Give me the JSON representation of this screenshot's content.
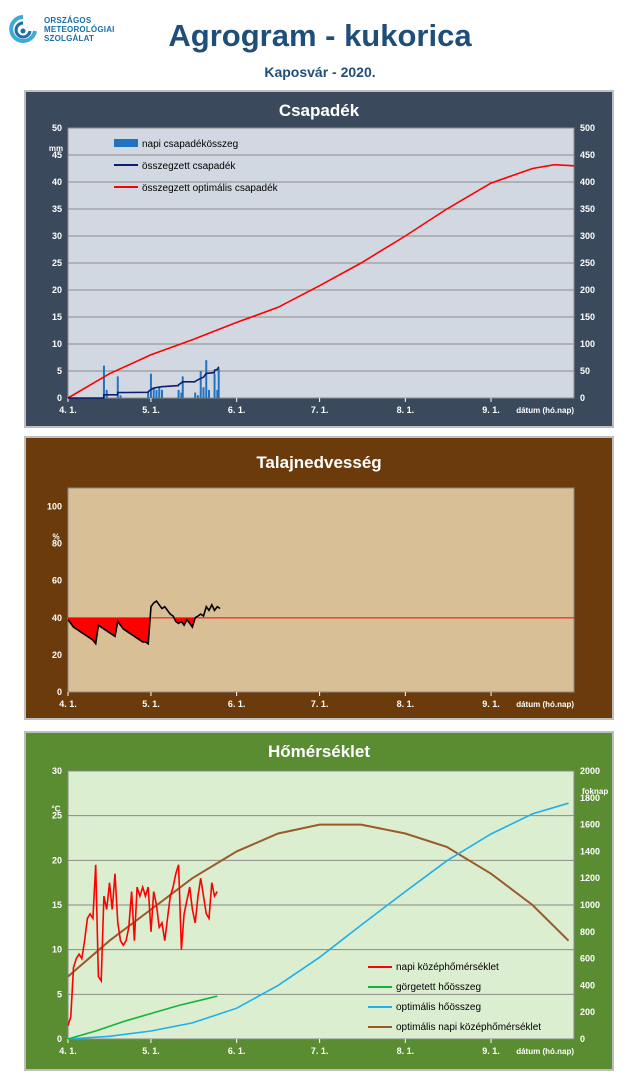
{
  "header": {
    "logo_lines": [
      "ORSZÁGOS",
      "METEOROLÓGIAI",
      "SZOLGÁLAT"
    ],
    "title": "Agrogram - kukorica",
    "subtitle": "Kaposvár  - 2020."
  },
  "colors": {
    "precip_panel_bg": "#3a4a5c",
    "precip_plot_bg": "#d2d8e2",
    "soil_panel_bg": "#6b3b0c",
    "soil_plot_bg": "#d9bf96",
    "temp_panel_bg": "#5a8c32",
    "temp_plot_bg": "#dbeed0"
  },
  "chart_data": [
    {
      "id": "precip",
      "type": "bar+line",
      "title": "Csapadék",
      "ylabel": "mm",
      "y2label": "",
      "xlabel": "dátum (hó.nap)",
      "x_ticks": [
        "4. 1.",
        "5. 1.",
        "6. 1.",
        "7. 1.",
        "8. 1.",
        "9. 1."
      ],
      "x_tick_days": [
        0,
        30,
        61,
        91,
        122,
        153
      ],
      "xlim": [
        0,
        183
      ],
      "ylim": [
        0,
        50
      ],
      "y_ticks": [
        0,
        5,
        10,
        15,
        20,
        25,
        30,
        35,
        40,
        45,
        50
      ],
      "y2lim": [
        0,
        500
      ],
      "y2_ticks": [
        0,
        50,
        100,
        150,
        200,
        250,
        300,
        350,
        400,
        450,
        500
      ],
      "legend": [
        {
          "label": "napi csapadékösszeg",
          "color": "#1f73c0",
          "kind": "bar"
        },
        {
          "label": "összegzett csapadék",
          "color": "#0a1f6e",
          "kind": "line"
        },
        {
          "label": "összegzett optimális  csapadék",
          "color": "#ff0000",
          "kind": "line"
        }
      ],
      "daily_bars": [
        [
          13,
          6
        ],
        [
          14,
          1.5
        ],
        [
          18,
          4
        ],
        [
          19,
          0.5
        ],
        [
          29,
          1
        ],
        [
          30,
          4.5
        ],
        [
          31,
          2
        ],
        [
          32,
          1.5
        ],
        [
          33,
          2
        ],
        [
          34,
          1.5
        ],
        [
          40,
          1.5
        ],
        [
          41,
          1
        ],
        [
          41.5,
          4
        ],
        [
          46,
          1
        ],
        [
          47,
          0.5
        ],
        [
          48,
          5
        ],
        [
          49,
          2
        ],
        [
          50,
          7
        ],
        [
          51,
          1.5
        ],
        [
          53,
          4.5
        ],
        [
          54,
          1.5
        ],
        [
          54.5,
          5.5
        ]
      ],
      "cumulative": [
        [
          0,
          0
        ],
        [
          12.9,
          0
        ],
        [
          13,
          6
        ],
        [
          17.9,
          6
        ],
        [
          18,
          10
        ],
        [
          28.9,
          10.5
        ],
        [
          29,
          11.5
        ],
        [
          30,
          16
        ],
        [
          31,
          18
        ],
        [
          32,
          19.5
        ],
        [
          34,
          21
        ],
        [
          39.9,
          23
        ],
        [
          40,
          24.5
        ],
        [
          41.5,
          30
        ],
        [
          45.9,
          30
        ],
        [
          46,
          31
        ],
        [
          48,
          36.5
        ],
        [
          49,
          38.5
        ],
        [
          50,
          45.5
        ],
        [
          52.9,
          47
        ],
        [
          53,
          51.5
        ],
        [
          54,
          53
        ],
        [
          54.5,
          58
        ]
      ],
      "cumulative_optimal": [
        [
          0,
          0
        ],
        [
          15,
          45
        ],
        [
          30,
          80
        ],
        [
          45,
          108
        ],
        [
          61,
          140
        ],
        [
          76,
          168
        ],
        [
          91,
          208
        ],
        [
          106,
          250
        ],
        [
          122,
          300
        ],
        [
          137,
          350
        ],
        [
          153,
          398
        ],
        [
          168,
          425
        ],
        [
          176,
          432
        ],
        [
          183,
          430
        ]
      ]
    },
    {
      "id": "soil",
      "type": "line",
      "title": "Talajnedvesség",
      "ylabel": "%",
      "xlabel": "dátum (hó.nap)",
      "x_ticks": [
        "4. 1.",
        "5. 1.",
        "6. 1.",
        "7. 1.",
        "8. 1.",
        "9. 1."
      ],
      "x_tick_days": [
        0,
        30,
        61,
        91,
        122,
        153
      ],
      "xlim": [
        0,
        183
      ],
      "ylim": [
        0,
        110
      ],
      "y_ticks": [
        0,
        20,
        40,
        60,
        80,
        100
      ],
      "threshold": 40,
      "series": [
        [
          0,
          39
        ],
        [
          1,
          37
        ],
        [
          2,
          35
        ],
        [
          3,
          34
        ],
        [
          4,
          33
        ],
        [
          5,
          32
        ],
        [
          6,
          31
        ],
        [
          7,
          30
        ],
        [
          8,
          29
        ],
        [
          9,
          28
        ],
        [
          10,
          26
        ],
        [
          11,
          36
        ],
        [
          12,
          35
        ],
        [
          13,
          34
        ],
        [
          14,
          33
        ],
        [
          15,
          32
        ],
        [
          16,
          31
        ],
        [
          17,
          30
        ],
        [
          18,
          38
        ],
        [
          19,
          36
        ],
        [
          20,
          34
        ],
        [
          21,
          33
        ],
        [
          22,
          32
        ],
        [
          23,
          31
        ],
        [
          24,
          30
        ],
        [
          25,
          29
        ],
        [
          26,
          28
        ],
        [
          27,
          27
        ],
        [
          28,
          27
        ],
        [
          29,
          26
        ],
        [
          30,
          46
        ],
        [
          31,
          48
        ],
        [
          32,
          49
        ],
        [
          33,
          47
        ],
        [
          34,
          45
        ],
        [
          35,
          46
        ],
        [
          36,
          44
        ],
        [
          37,
          42
        ],
        [
          38,
          41
        ],
        [
          39,
          38
        ],
        [
          40,
          37
        ],
        [
          41,
          38
        ],
        [
          42,
          36
        ],
        [
          43,
          39
        ],
        [
          44,
          37
        ],
        [
          45,
          35
        ],
        [
          46,
          40
        ],
        [
          47,
          41
        ],
        [
          48,
          42
        ],
        [
          49,
          41
        ],
        [
          50,
          46
        ],
        [
          51,
          44
        ],
        [
          52,
          47
        ],
        [
          53,
          44
        ],
        [
          54,
          46
        ],
        [
          55,
          45
        ]
      ]
    },
    {
      "id": "temp",
      "type": "line",
      "title": "Hőmérséklet",
      "ylabel": "°C",
      "y2label": "foknap",
      "xlabel": "dátum (hó.nap)",
      "x_ticks": [
        "4. 1.",
        "5. 1.",
        "6. 1.",
        "7. 1.",
        "8. 1.",
        "9. 1."
      ],
      "x_tick_days": [
        0,
        30,
        61,
        91,
        122,
        153
      ],
      "xlim": [
        0,
        183
      ],
      "ylim": [
        0,
        30
      ],
      "y_ticks": [
        0,
        5,
        10,
        15,
        20,
        25,
        30
      ],
      "y2lim": [
        0,
        2000
      ],
      "y2_ticks": [
        0,
        200,
        400,
        600,
        800,
        1000,
        1200,
        1400,
        1600,
        1800,
        2000
      ],
      "legend": [
        {
          "label": "napi középhőmérséklet",
          "color": "#ff0000"
        },
        {
          "label": "görgetett hőösszeg",
          "color": "#14b43c"
        },
        {
          "label": "optimális hőösszeg",
          "color": "#1eb0ea"
        },
        {
          "label": "optimális napi középhőmérséklet",
          "color": "#9a5a2a"
        }
      ],
      "daily_mean": [
        [
          0,
          1.5
        ],
        [
          1,
          2.5
        ],
        [
          2,
          8
        ],
        [
          3,
          9
        ],
        [
          4,
          9.5
        ],
        [
          5,
          9
        ],
        [
          6,
          11
        ],
        [
          7,
          13.5
        ],
        [
          8,
          14
        ],
        [
          9,
          13.5
        ],
        [
          10,
          19.5
        ],
        [
          11,
          7
        ],
        [
          12,
          6.5
        ],
        [
          13,
          16
        ],
        [
          14,
          14.5
        ],
        [
          15,
          17.5
        ],
        [
          16,
          14.5
        ],
        [
          17,
          18.5
        ],
        [
          18,
          13
        ],
        [
          19,
          11
        ],
        [
          20,
          10.5
        ],
        [
          21,
          11
        ],
        [
          22,
          12.5
        ],
        [
          23,
          16.5
        ],
        [
          24,
          11
        ],
        [
          25,
          17
        ],
        [
          26,
          16
        ],
        [
          27,
          17
        ],
        [
          28,
          16
        ],
        [
          29,
          17
        ],
        [
          30,
          12
        ],
        [
          31,
          16.5
        ],
        [
          32,
          15
        ],
        [
          33,
          12.5
        ],
        [
          34,
          13
        ],
        [
          35,
          11
        ],
        [
          36,
          13.5
        ],
        [
          37,
          16
        ],
        [
          38,
          17
        ],
        [
          39,
          18.5
        ],
        [
          40,
          19.5
        ],
        [
          41,
          10
        ],
        [
          42,
          14
        ],
        [
          43,
          15.5
        ],
        [
          44,
          17
        ],
        [
          45,
          14.5
        ],
        [
          46,
          13
        ],
        [
          47,
          16
        ],
        [
          48,
          18
        ],
        [
          49,
          16
        ],
        [
          50,
          14
        ],
        [
          51,
          13.5
        ],
        [
          52,
          17.5
        ],
        [
          53,
          16
        ],
        [
          54,
          16.5
        ]
      ],
      "rolling_sum": [
        [
          0,
          0
        ],
        [
          10,
          60
        ],
        [
          20,
          130
        ],
        [
          30,
          190
        ],
        [
          40,
          250
        ],
        [
          50,
          300
        ],
        [
          54,
          320
        ]
      ],
      "optimal_sum": [
        [
          0,
          0
        ],
        [
          15,
          20
        ],
        [
          30,
          60
        ],
        [
          45,
          120
        ],
        [
          61,
          230
        ],
        [
          76,
          400
        ],
        [
          91,
          610
        ],
        [
          106,
          850
        ],
        [
          122,
          1100
        ],
        [
          137,
          1330
        ],
        [
          153,
          1530
        ],
        [
          168,
          1680
        ],
        [
          181,
          1760
        ]
      ],
      "optimal_daily": [
        [
          0,
          7
        ],
        [
          15,
          11
        ],
        [
          30,
          14.5
        ],
        [
          45,
          18
        ],
        [
          61,
          21
        ],
        [
          76,
          23
        ],
        [
          91,
          24
        ],
        [
          106,
          24
        ],
        [
          122,
          23
        ],
        [
          137,
          21.5
        ],
        [
          153,
          18.5
        ],
        [
          168,
          15
        ],
        [
          181,
          11
        ]
      ]
    }
  ]
}
